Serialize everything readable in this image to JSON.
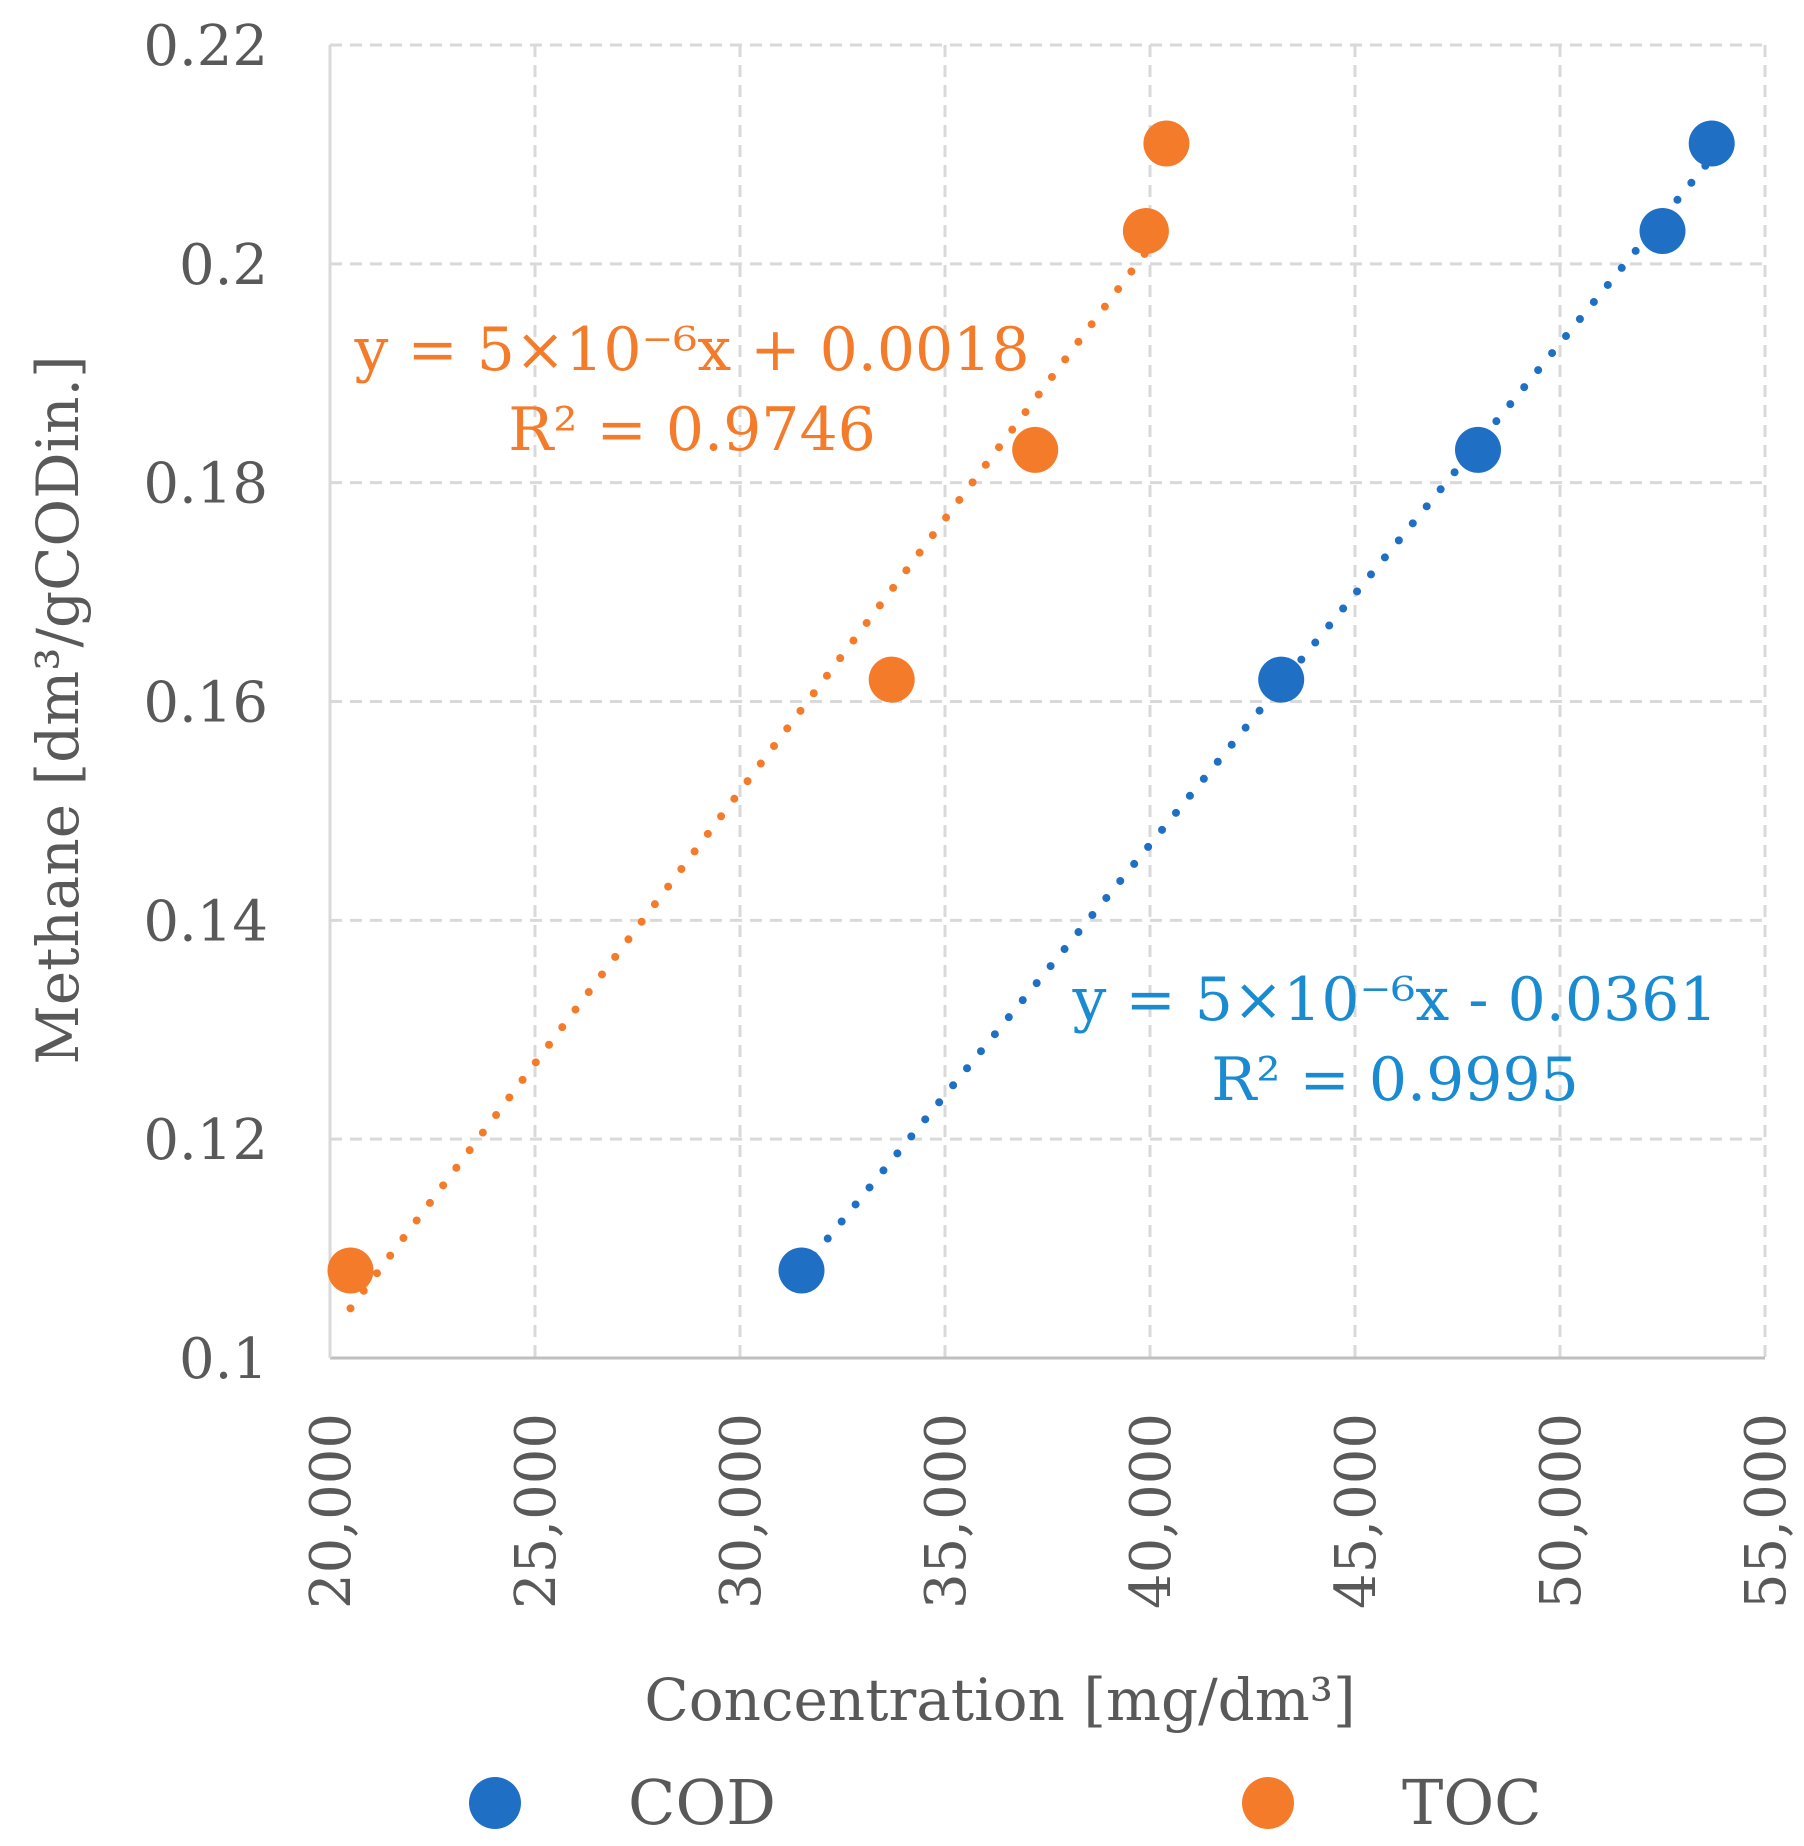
{
  "colors": {
    "cod": "#1f6fc5",
    "toc": "#f47b2a",
    "cod_label": "#1a8bd1",
    "toc_label": "#f47b2a",
    "grid": "#d9d9d9",
    "text": "#595959"
  },
  "chart_data": {
    "type": "scatter",
    "xlabel": "Concentration [mg/dm³]",
    "ylabel": "Methane [dm³/gCODin.]",
    "xlim": [
      20000,
      55000
    ],
    "ylim": [
      0.1,
      0.22
    ],
    "x_ticks": [
      20000,
      25000,
      30000,
      35000,
      40000,
      45000,
      50000,
      55000
    ],
    "x_tick_labels": [
      "20,000",
      "25,000",
      "30,000",
      "35,000",
      "40,000",
      "45,000",
      "50,000",
      "55,000"
    ],
    "y_ticks": [
      0.1,
      0.12,
      0.14,
      0.16,
      0.18,
      0.2,
      0.22
    ],
    "y_tick_labels": [
      "0.1",
      "0.12",
      "0.14",
      "0.16",
      "0.18",
      "0.2",
      "0.22"
    ],
    "grid": true,
    "legend_position": "bottom",
    "series": [
      {
        "name": "COD",
        "points": [
          [
            31500,
            0.108
          ],
          [
            43200,
            0.162
          ],
          [
            48000,
            0.183
          ],
          [
            52500,
            0.203
          ],
          [
            53700,
            0.211
          ]
        ],
        "trendline": {
          "x": [
            31800,
            53700
          ],
          "equation": "y = 5×10⁻⁶x - 0.0361",
          "r2": "R² = 0.9995"
        }
      },
      {
        "name": "TOC",
        "points": [
          [
            20500,
            0.108
          ],
          [
            33700,
            0.162
          ],
          [
            37200,
            0.183
          ],
          [
            39900,
            0.203
          ],
          [
            40400,
            0.211
          ]
        ],
        "trendline": {
          "x": [
            20500,
            40000
          ],
          "equation": "y = 5×10⁻⁶x + 0.0018",
          "r2": "R² = 0.9746"
        }
      }
    ]
  }
}
